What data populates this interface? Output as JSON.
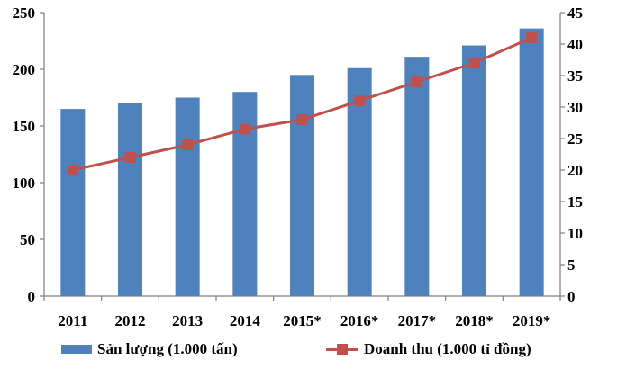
{
  "chart_data": {
    "type": "bar",
    "categories": [
      "2011",
      "2012",
      "2013",
      "2014",
      "2015*",
      "2016*",
      "2017*",
      "2018*",
      "2019*"
    ],
    "series": [
      {
        "name": "Sản lượng (1.000 tấn)",
        "type": "bar",
        "axis": "left",
        "color": "#4f81bd",
        "values": [
          165,
          170,
          175,
          180,
          195,
          201,
          211,
          221,
          236
        ]
      },
      {
        "name": "Doanh thu (1.000 tỉ đồng)",
        "type": "line",
        "axis": "right",
        "color": "#c0504d",
        "values": [
          20,
          22,
          24,
          26.5,
          28,
          31,
          34,
          37,
          41
        ]
      }
    ],
    "y_left": {
      "min": 0,
      "max": 250,
      "step": 50,
      "ticks": [
        "0",
        "50",
        "100",
        "150",
        "200",
        "250"
      ]
    },
    "y_right": {
      "min": 0,
      "max": 45,
      "step": 5,
      "ticks": [
        "0",
        "5",
        "10",
        "15",
        "20",
        "25",
        "30",
        "35",
        "40",
        "45"
      ]
    },
    "grid": false,
    "legend_position": "bottom"
  }
}
